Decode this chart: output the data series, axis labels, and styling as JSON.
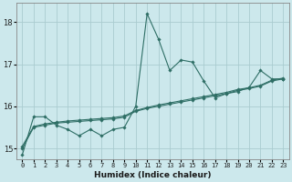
{
  "xlabel": "Humidex (Indice chaleur)",
  "background_color": "#cce8ec",
  "grid_color": "#aaccd0",
  "line_color": "#2e6e65",
  "x_values": [
    0,
    1,
    2,
    3,
    4,
    5,
    6,
    7,
    8,
    9,
    10,
    11,
    12,
    13,
    14,
    15,
    16,
    17,
    18,
    19,
    20,
    21,
    22,
    23
  ],
  "series_volatile": [
    14.85,
    15.75,
    15.75,
    15.55,
    15.45,
    15.3,
    15.45,
    15.3,
    15.45,
    15.5,
    16.0,
    18.2,
    17.6,
    16.85,
    17.1,
    17.05,
    16.6,
    16.2,
    16.3,
    16.35,
    16.45,
    16.85,
    16.65,
    16.65
  ],
  "series_trend1": [
    15.0,
    15.5,
    15.55,
    15.6,
    15.62,
    15.64,
    15.66,
    15.68,
    15.7,
    15.74,
    15.88,
    15.95,
    16.0,
    16.05,
    16.1,
    16.15,
    16.2,
    16.25,
    16.3,
    16.38,
    16.42,
    16.48,
    16.6,
    16.65
  ],
  "series_trend2": [
    15.05,
    15.52,
    15.58,
    15.62,
    15.65,
    15.67,
    15.69,
    15.71,
    15.73,
    15.77,
    15.9,
    15.97,
    16.03,
    16.08,
    16.13,
    16.18,
    16.23,
    16.28,
    16.33,
    16.4,
    16.44,
    16.5,
    16.62,
    16.67
  ],
  "ylim": [
    14.75,
    18.45
  ],
  "yticks": [
    15,
    16,
    17,
    18
  ],
  "xticks": [
    0,
    1,
    2,
    3,
    4,
    5,
    6,
    7,
    8,
    9,
    10,
    11,
    12,
    13,
    14,
    15,
    16,
    17,
    18,
    19,
    20,
    21,
    22,
    23
  ],
  "marker": "D",
  "marker_size": 1.8,
  "line_width": 0.8
}
